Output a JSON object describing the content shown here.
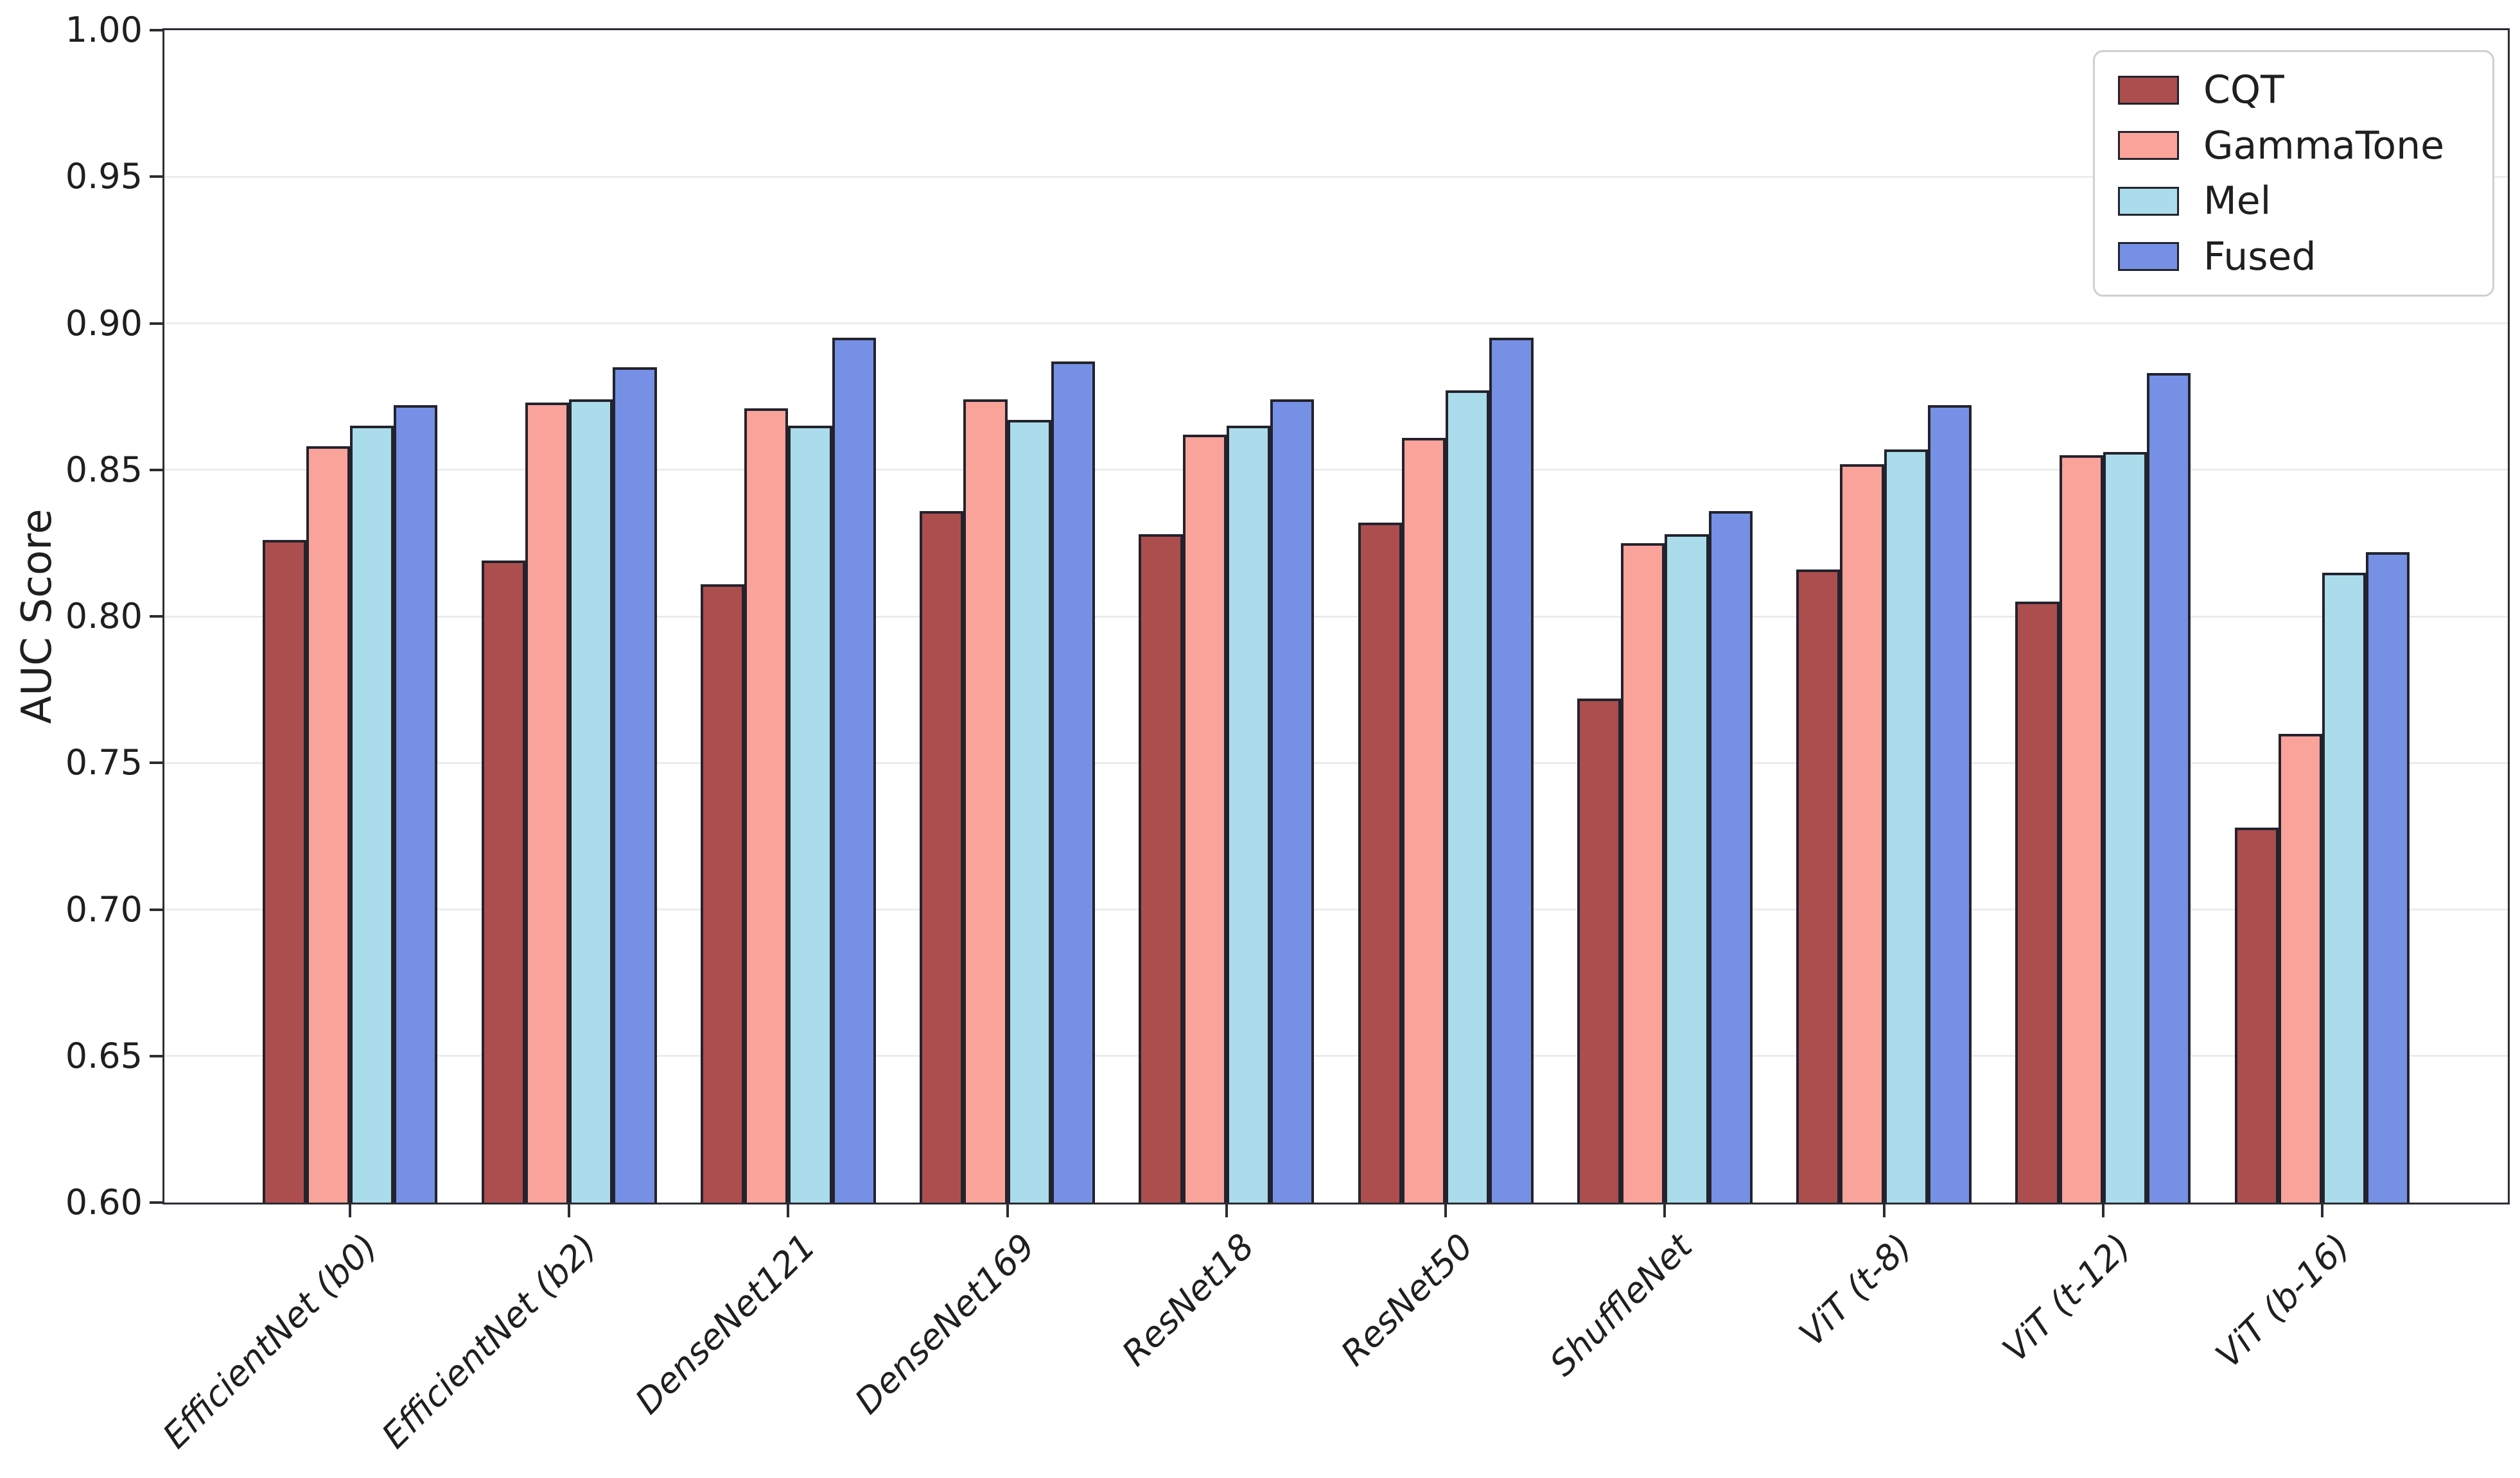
{
  "figure": {
    "background": "#ffffff",
    "text_color": "#1f1f1f",
    "spine_color": "#2c2c34",
    "gridline_color": "#ececec",
    "legend_border_color": "#cfcfcf"
  },
  "chart_data": {
    "type": "bar",
    "title": "",
    "xlabel": "",
    "ylabel": "AUC Score",
    "ylim": [
      0.6,
      1.0
    ],
    "ytick_step": 0.05,
    "ytick_labels": [
      "0.60",
      "0.65",
      "0.70",
      "0.75",
      "0.80",
      "0.85",
      "0.90",
      "0.95",
      "1.00"
    ],
    "grid": "horizontal",
    "legend_position": "upper-right",
    "bar_edge_color": "#23232d",
    "categories": [
      "EfficientNet (b0)",
      "EfficientNet (b2)",
      "DenseNet121",
      "DenseNet169",
      "ResNet18",
      "ResNet50",
      "ShuffleNet",
      "ViT (t-8)",
      "ViT (t-12)",
      "ViT (b-16)"
    ],
    "series": [
      {
        "name": "CQT",
        "color": "#ac4e4e",
        "values": [
          0.826,
          0.819,
          0.811,
          0.836,
          0.828,
          0.832,
          0.772,
          0.816,
          0.805,
          0.728
        ]
      },
      {
        "name": "GammaTone",
        "color": "#f9a39b",
        "values": [
          0.858,
          0.873,
          0.871,
          0.874,
          0.862,
          0.861,
          0.825,
          0.852,
          0.855,
          0.76
        ]
      },
      {
        "name": "Mel",
        "color": "#abdceb",
        "values": [
          0.865,
          0.874,
          0.865,
          0.867,
          0.865,
          0.877,
          0.828,
          0.857,
          0.856,
          0.815
        ]
      },
      {
        "name": "Fused",
        "color": "#7590e4",
        "values": [
          0.872,
          0.885,
          0.895,
          0.887,
          0.874,
          0.895,
          0.836,
          0.872,
          0.883,
          0.822
        ]
      }
    ]
  }
}
